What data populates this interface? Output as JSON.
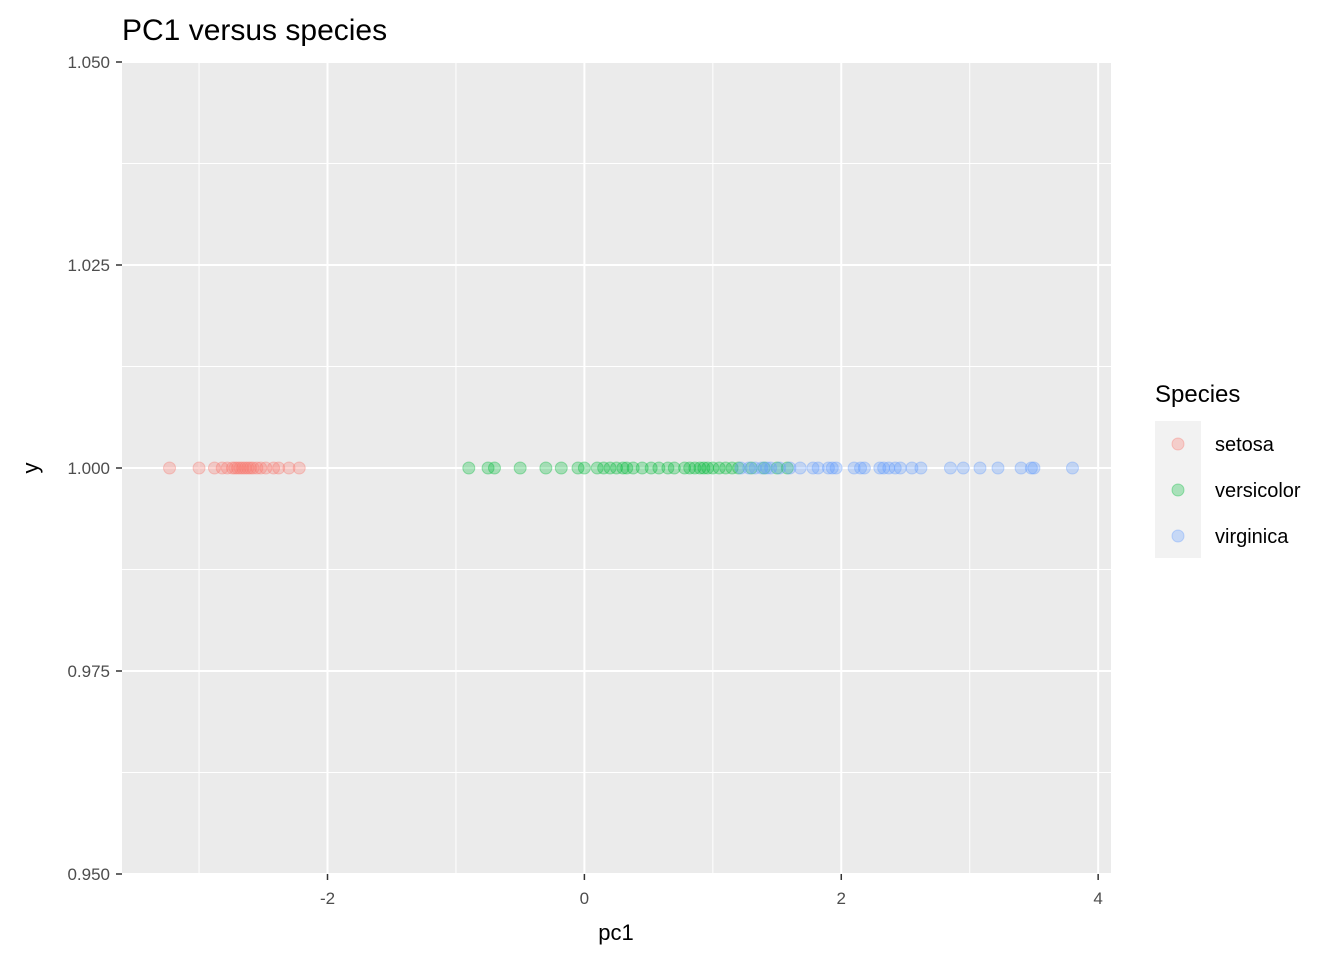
{
  "chart_data": {
    "type": "scatter",
    "title": "PC1 versus species",
    "xlabel": "pc1",
    "ylabel": "y",
    "xlim": [
      -3.6,
      4.1
    ],
    "ylim": [
      0.95,
      1.05
    ],
    "x_ticks": [
      -2,
      0,
      2,
      4
    ],
    "x_tick_labels": [
      "-2",
      "0",
      "2",
      "4"
    ],
    "y_ticks": [
      0.95,
      0.975,
      1.0,
      1.025,
      1.05
    ],
    "y_tick_labels": [
      "0.950",
      "0.975",
      "1.000",
      "1.025",
      "1.050"
    ],
    "grid": true,
    "panel_background": "#EBEBEB",
    "legend": {
      "title": "Species",
      "position": "right"
    },
    "series": [
      {
        "name": "setosa",
        "color": "#F8766D",
        "y": 1.0,
        "x": [
          -3.23,
          -3.0,
          -2.88,
          -2.82,
          -2.78,
          -2.74,
          -2.72,
          -2.7,
          -2.68,
          -2.66,
          -2.64,
          -2.62,
          -2.6,
          -2.58,
          -2.55,
          -2.52,
          -2.48,
          -2.42,
          -2.38,
          -2.3,
          -2.22
        ]
      },
      {
        "name": "versicolor",
        "color": "#00BA38",
        "y": 1.0,
        "x": [
          -0.9,
          -0.75,
          -0.7,
          -0.5,
          -0.3,
          -0.18,
          -0.05,
          0.0,
          0.1,
          0.15,
          0.2,
          0.25,
          0.3,
          0.33,
          0.38,
          0.45,
          0.52,
          0.58,
          0.65,
          0.7,
          0.78,
          0.82,
          0.86,
          0.9,
          0.93,
          0.96,
          1.0,
          1.05,
          1.1,
          1.15,
          1.2,
          1.3,
          1.4,
          1.5,
          1.58
        ]
      },
      {
        "name": "virginica",
        "color": "#619CFF",
        "y": 1.0,
        "x": [
          1.22,
          1.28,
          1.33,
          1.38,
          1.42,
          1.45,
          1.52,
          1.6,
          1.68,
          1.78,
          1.82,
          1.9,
          1.93,
          1.96,
          2.1,
          2.15,
          2.18,
          2.3,
          2.33,
          2.37,
          2.42,
          2.46,
          2.55,
          2.62,
          2.85,
          2.95,
          3.08,
          3.22,
          3.4,
          3.48,
          3.5,
          3.8
        ]
      }
    ]
  }
}
